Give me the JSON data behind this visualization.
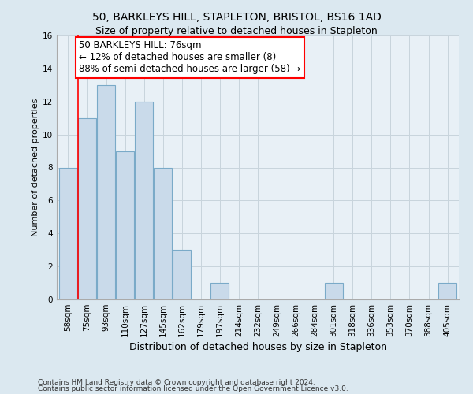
{
  "title1": "50, BARKLEYS HILL, STAPLETON, BRISTOL, BS16 1AD",
  "title2": "Size of property relative to detached houses in Stapleton",
  "xlabel": "Distribution of detached houses by size in Stapleton",
  "ylabel": "Number of detached properties",
  "categories": [
    "58sqm",
    "75sqm",
    "93sqm",
    "110sqm",
    "127sqm",
    "145sqm",
    "162sqm",
    "179sqm",
    "197sqm",
    "214sqm",
    "232sqm",
    "249sqm",
    "266sqm",
    "284sqm",
    "301sqm",
    "318sqm",
    "336sqm",
    "353sqm",
    "370sqm",
    "388sqm",
    "405sqm"
  ],
  "values": [
    8,
    11,
    13,
    9,
    12,
    8,
    3,
    0,
    1,
    0,
    0,
    0,
    0,
    0,
    1,
    0,
    0,
    0,
    0,
    0,
    1
  ],
  "bar_color": "#c9daea",
  "bar_edge_color": "#7aaac8",
  "annotation_line1": "50 BARKLEYS HILL: 76sqm",
  "annotation_line2": "← 12% of detached houses are smaller (8)",
  "annotation_line3": "88% of semi-detached houses are larger (58) →",
  "annotation_box_color": "white",
  "annotation_box_edge_color": "red",
  "property_line_color": "red",
  "property_line_index": 1,
  "ylim": [
    0,
    16
  ],
  "yticks": [
    0,
    2,
    4,
    6,
    8,
    10,
    12,
    14,
    16
  ],
  "footnote1": "Contains HM Land Registry data © Crown copyright and database right 2024.",
  "footnote2": "Contains public sector information licensed under the Open Government Licence v3.0.",
  "fig_bg_color": "#dbe8f0",
  "plot_bg_color": "#e8f0f6",
  "grid_color": "#c8d4dc",
  "title1_fontsize": 10,
  "title2_fontsize": 9,
  "ylabel_fontsize": 8,
  "xlabel_fontsize": 9,
  "tick_fontsize": 7.5,
  "annot_fontsize": 8.5
}
